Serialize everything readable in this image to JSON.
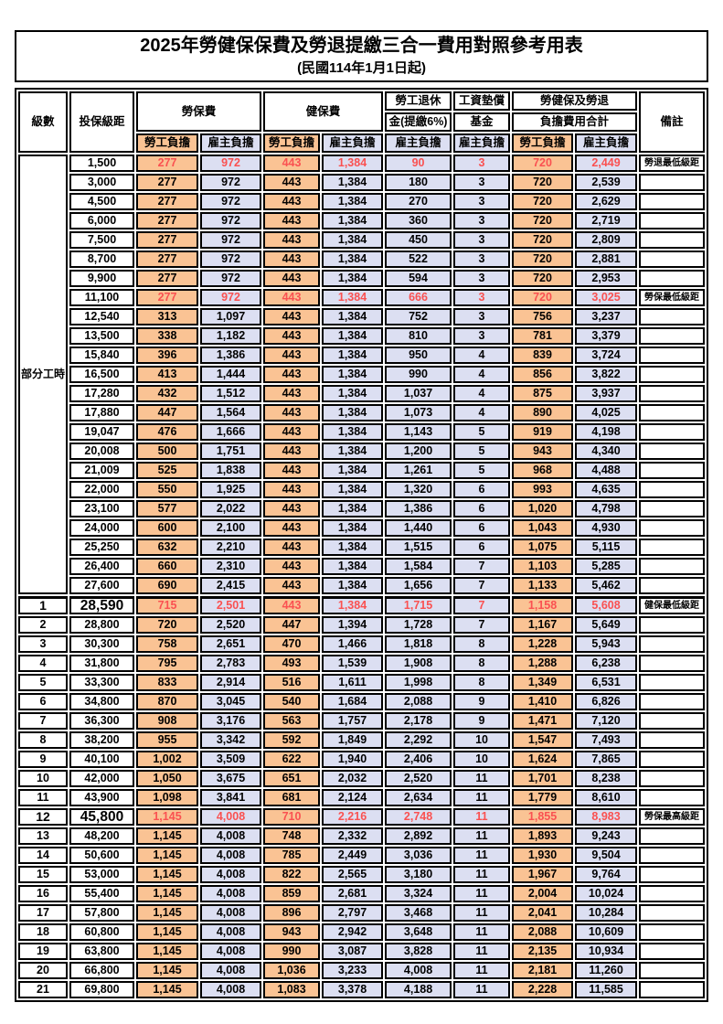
{
  "title": "2025年勞健保保費及勞退提繳三合一費用對照參考用表",
  "subtitle": "(民國114年1月1日起)",
  "colors": {
    "employee_bg": "#FAC394",
    "employer_bg": "#DCDFF2",
    "highlight_red": "#FA5151",
    "border": "#000000"
  },
  "table": {
    "header": {
      "level": "級數",
      "bracket": "投保級距",
      "labor_insurance": "勞保費",
      "health_insurance": "健保費",
      "pension_line1": "勞工退休",
      "pension_line2": "金(提繳6%)",
      "wage_fund_line1": "工資墊償",
      "wage_fund_line2": "基金",
      "total_line1": "勞健保及勞退",
      "total_line2": "負擔費用合計",
      "remark": "備註",
      "employee": "勞工負擔",
      "employer": "雇主負擔"
    },
    "part_time_label": "部分工時",
    "rows": [
      {
        "level": "",
        "bracket": "1,500",
        "values": [
          "277",
          "972",
          "443",
          "1,384",
          "90",
          "3",
          "720",
          "2,449"
        ],
        "remark": "勞退最低級距",
        "highlight": true
      },
      {
        "level": "",
        "bracket": "3,000",
        "values": [
          "277",
          "972",
          "443",
          "1,384",
          "180",
          "3",
          "720",
          "2,539"
        ],
        "remark": ""
      },
      {
        "level": "",
        "bracket": "4,500",
        "values": [
          "277",
          "972",
          "443",
          "1,384",
          "270",
          "3",
          "720",
          "2,629"
        ],
        "remark": ""
      },
      {
        "level": "",
        "bracket": "6,000",
        "values": [
          "277",
          "972",
          "443",
          "1,384",
          "360",
          "3",
          "720",
          "2,719"
        ],
        "remark": ""
      },
      {
        "level": "",
        "bracket": "7,500",
        "values": [
          "277",
          "972",
          "443",
          "1,384",
          "450",
          "3",
          "720",
          "2,809"
        ],
        "remark": ""
      },
      {
        "level": "",
        "bracket": "8,700",
        "values": [
          "277",
          "972",
          "443",
          "1,384",
          "522",
          "3",
          "720",
          "2,881"
        ],
        "remark": ""
      },
      {
        "level": "",
        "bracket": "9,900",
        "values": [
          "277",
          "972",
          "443",
          "1,384",
          "594",
          "3",
          "720",
          "2,953"
        ],
        "remark": ""
      },
      {
        "level": "",
        "bracket": "11,100",
        "values": [
          "277",
          "972",
          "443",
          "1,384",
          "666",
          "3",
          "720",
          "3,025"
        ],
        "remark": "勞保最低級距",
        "highlight": true
      },
      {
        "level": "",
        "bracket": "12,540",
        "values": [
          "313",
          "1,097",
          "443",
          "1,384",
          "752",
          "3",
          "756",
          "3,237"
        ],
        "remark": ""
      },
      {
        "level": "",
        "bracket": "13,500",
        "values": [
          "338",
          "1,182",
          "443",
          "1,384",
          "810",
          "3",
          "781",
          "3,379"
        ],
        "remark": ""
      },
      {
        "level": "",
        "bracket": "15,840",
        "values": [
          "396",
          "1,386",
          "443",
          "1,384",
          "950",
          "4",
          "839",
          "3,724"
        ],
        "remark": ""
      },
      {
        "level": "",
        "bracket": "16,500",
        "values": [
          "413",
          "1,444",
          "443",
          "1,384",
          "990",
          "4",
          "856",
          "3,822"
        ],
        "remark": ""
      },
      {
        "level": "",
        "bracket": "17,280",
        "values": [
          "432",
          "1,512",
          "443",
          "1,384",
          "1,037",
          "4",
          "875",
          "3,937"
        ],
        "remark": ""
      },
      {
        "level": "",
        "bracket": "17,880",
        "values": [
          "447",
          "1,564",
          "443",
          "1,384",
          "1,073",
          "4",
          "890",
          "4,025"
        ],
        "remark": ""
      },
      {
        "level": "",
        "bracket": "19,047",
        "values": [
          "476",
          "1,666",
          "443",
          "1,384",
          "1,143",
          "5",
          "919",
          "4,198"
        ],
        "remark": ""
      },
      {
        "level": "",
        "bracket": "20,008",
        "values": [
          "500",
          "1,751",
          "443",
          "1,384",
          "1,200",
          "5",
          "943",
          "4,340"
        ],
        "remark": ""
      },
      {
        "level": "",
        "bracket": "21,009",
        "values": [
          "525",
          "1,838",
          "443",
          "1,384",
          "1,261",
          "5",
          "968",
          "4,488"
        ],
        "remark": ""
      },
      {
        "level": "",
        "bracket": "22,000",
        "values": [
          "550",
          "1,925",
          "443",
          "1,384",
          "1,320",
          "6",
          "993",
          "4,635"
        ],
        "remark": ""
      },
      {
        "level": "",
        "bracket": "23,100",
        "values": [
          "577",
          "2,022",
          "443",
          "1,384",
          "1,386",
          "6",
          "1,020",
          "4,798"
        ],
        "remark": ""
      },
      {
        "level": "",
        "bracket": "24,000",
        "values": [
          "600",
          "2,100",
          "443",
          "1,384",
          "1,440",
          "6",
          "1,043",
          "4,930"
        ],
        "remark": ""
      },
      {
        "level": "",
        "bracket": "25,250",
        "values": [
          "632",
          "2,210",
          "443",
          "1,384",
          "1,515",
          "6",
          "1,075",
          "5,115"
        ],
        "remark": ""
      },
      {
        "level": "",
        "bracket": "26,400",
        "values": [
          "660",
          "2,310",
          "443",
          "1,384",
          "1,584",
          "7",
          "1,103",
          "5,285"
        ],
        "remark": ""
      },
      {
        "level": "",
        "bracket": "27,600",
        "values": [
          "690",
          "2,415",
          "443",
          "1,384",
          "1,656",
          "7",
          "1,133",
          "5,462"
        ],
        "remark": ""
      },
      {
        "level": "1",
        "bracket": "28,590",
        "values": [
          "715",
          "2,501",
          "443",
          "1,384",
          "1,715",
          "7",
          "1,158",
          "5,608"
        ],
        "remark": "健保最低級距",
        "highlight": true,
        "strong": true,
        "section_start": true
      },
      {
        "level": "2",
        "bracket": "28,800",
        "values": [
          "720",
          "2,520",
          "447",
          "1,394",
          "1,728",
          "7",
          "1,167",
          "5,649"
        ],
        "remark": ""
      },
      {
        "level": "3",
        "bracket": "30,300",
        "values": [
          "758",
          "2,651",
          "470",
          "1,466",
          "1,818",
          "8",
          "1,228",
          "5,943"
        ],
        "remark": ""
      },
      {
        "level": "4",
        "bracket": "31,800",
        "values": [
          "795",
          "2,783",
          "493",
          "1,539",
          "1,908",
          "8",
          "1,288",
          "6,238"
        ],
        "remark": ""
      },
      {
        "level": "5",
        "bracket": "33,300",
        "values": [
          "833",
          "2,914",
          "516",
          "1,611",
          "1,998",
          "8",
          "1,349",
          "6,531"
        ],
        "remark": ""
      },
      {
        "level": "6",
        "bracket": "34,800",
        "values": [
          "870",
          "3,045",
          "540",
          "1,684",
          "2,088",
          "9",
          "1,410",
          "6,826"
        ],
        "remark": ""
      },
      {
        "level": "7",
        "bracket": "36,300",
        "values": [
          "908",
          "3,176",
          "563",
          "1,757",
          "2,178",
          "9",
          "1,471",
          "7,120"
        ],
        "remark": ""
      },
      {
        "level": "8",
        "bracket": "38,200",
        "values": [
          "955",
          "3,342",
          "592",
          "1,849",
          "2,292",
          "10",
          "1,547",
          "7,493"
        ],
        "remark": ""
      },
      {
        "level": "9",
        "bracket": "40,100",
        "values": [
          "1,002",
          "3,509",
          "622",
          "1,940",
          "2,406",
          "10",
          "1,624",
          "7,865"
        ],
        "remark": ""
      },
      {
        "level": "10",
        "bracket": "42,000",
        "values": [
          "1,050",
          "3,675",
          "651",
          "2,032",
          "2,520",
          "11",
          "1,701",
          "8,238"
        ],
        "remark": ""
      },
      {
        "level": "11",
        "bracket": "43,900",
        "values": [
          "1,098",
          "3,841",
          "681",
          "2,124",
          "2,634",
          "11",
          "1,779",
          "8,610"
        ],
        "remark": ""
      },
      {
        "level": "12",
        "bracket": "45,800",
        "values": [
          "1,145",
          "4,008",
          "710",
          "2,216",
          "2,748",
          "11",
          "1,855",
          "8,983"
        ],
        "remark": "勞保最高級距",
        "highlight": true,
        "strong": true
      },
      {
        "level": "13",
        "bracket": "48,200",
        "values": [
          "1,145",
          "4,008",
          "748",
          "2,332",
          "2,892",
          "11",
          "1,893",
          "9,243"
        ],
        "remark": ""
      },
      {
        "level": "14",
        "bracket": "50,600",
        "values": [
          "1,145",
          "4,008",
          "785",
          "2,449",
          "3,036",
          "11",
          "1,930",
          "9,504"
        ],
        "remark": ""
      },
      {
        "level": "15",
        "bracket": "53,000",
        "values": [
          "1,145",
          "4,008",
          "822",
          "2,565",
          "3,180",
          "11",
          "1,967",
          "9,764"
        ],
        "remark": ""
      },
      {
        "level": "16",
        "bracket": "55,400",
        "values": [
          "1,145",
          "4,008",
          "859",
          "2,681",
          "3,324",
          "11",
          "2,004",
          "10,024"
        ],
        "remark": ""
      },
      {
        "level": "17",
        "bracket": "57,800",
        "values": [
          "1,145",
          "4,008",
          "896",
          "2,797",
          "3,468",
          "11",
          "2,041",
          "10,284"
        ],
        "remark": ""
      },
      {
        "level": "18",
        "bracket": "60,800",
        "values": [
          "1,145",
          "4,008",
          "943",
          "2,942",
          "3,648",
          "11",
          "2,088",
          "10,609"
        ],
        "remark": ""
      },
      {
        "level": "19",
        "bracket": "63,800",
        "values": [
          "1,145",
          "4,008",
          "990",
          "3,087",
          "3,828",
          "11",
          "2,135",
          "10,934"
        ],
        "remark": ""
      },
      {
        "level": "20",
        "bracket": "66,800",
        "values": [
          "1,145",
          "4,008",
          "1,036",
          "3,233",
          "4,008",
          "11",
          "2,181",
          "11,260"
        ],
        "remark": ""
      },
      {
        "level": "21",
        "bracket": "69,800",
        "values": [
          "1,145",
          "4,008",
          "1,083",
          "3,378",
          "4,188",
          "11",
          "2,228",
          "11,585"
        ],
        "remark": ""
      }
    ]
  }
}
